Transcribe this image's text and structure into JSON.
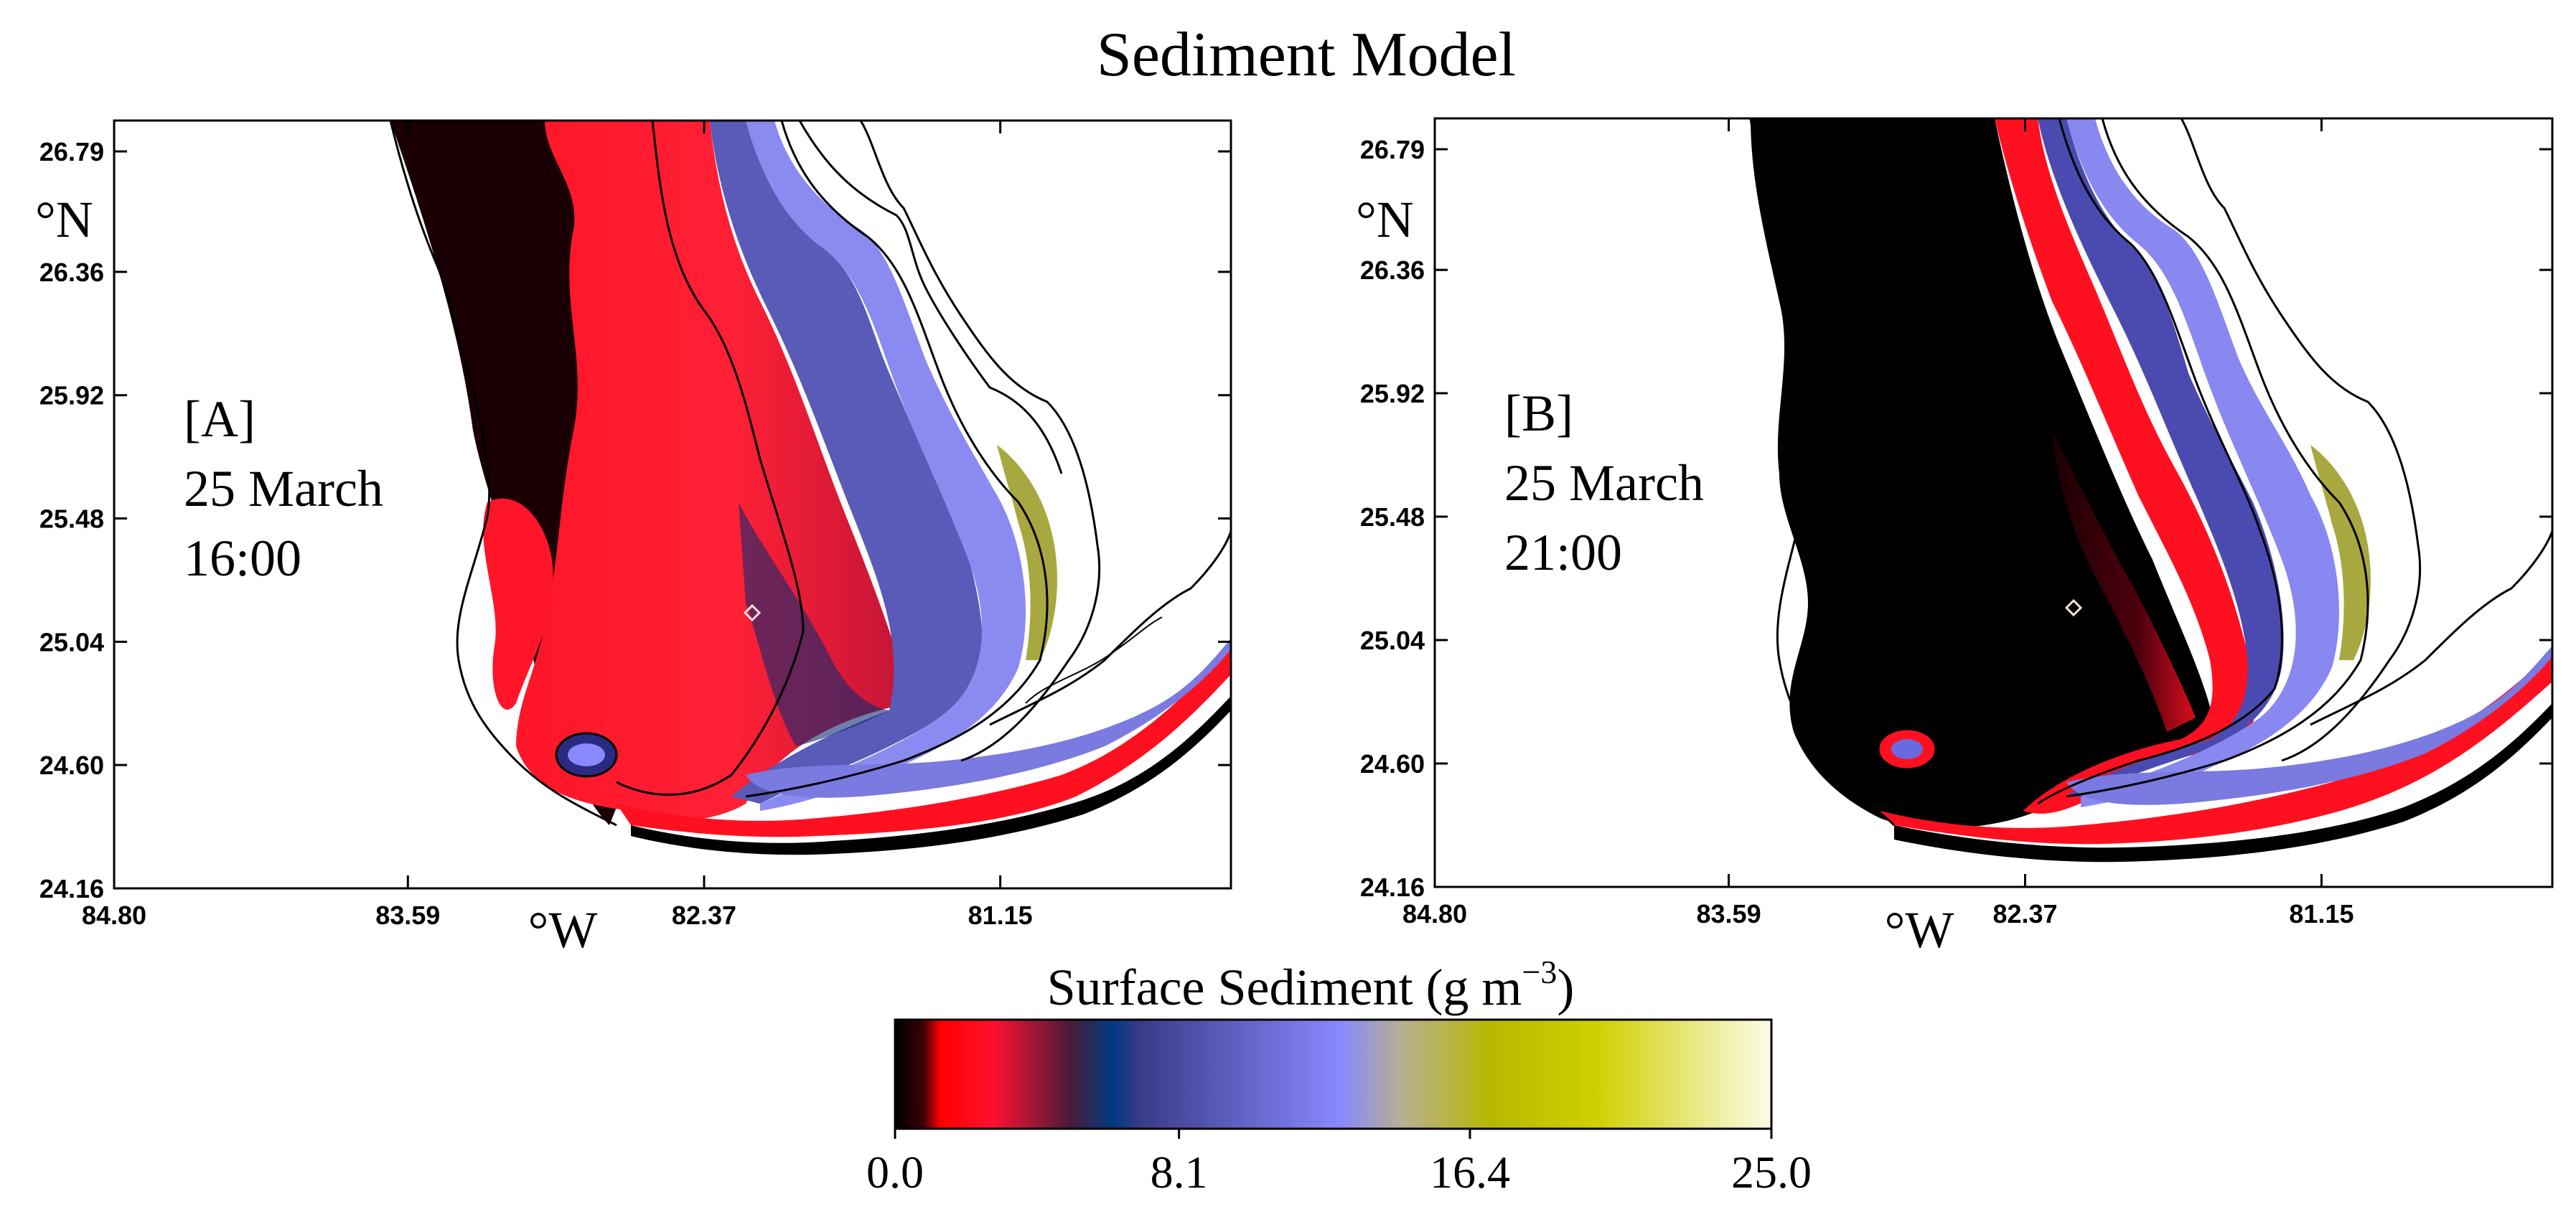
{
  "figure": {
    "title": "Sediment Model"
  },
  "chart_data": [
    {
      "type": "heatmap",
      "panel": "[A]",
      "date": "25 March",
      "time": "16:00",
      "variable": "Surface Sediment",
      "xlabel": "°W",
      "ylabel": "°N",
      "xlim": [
        84.8,
        80.2
      ],
      "ylim": [
        24.16,
        26.9
      ],
      "x_ticks": [
        "84.80",
        "83.59",
        "82.37",
        "81.15"
      ],
      "y_ticks": [
        "24.16",
        "24.60",
        "25.04",
        "25.48",
        "25.92",
        "26.36",
        "26.79"
      ],
      "station_marker": {
        "lon": 82.25,
        "lat": 25.15
      }
    },
    {
      "type": "heatmap",
      "panel": "[B]",
      "date": "25 March",
      "time": "21:00",
      "variable": "Surface Sediment",
      "xlabel": "°W",
      "ylabel": "°N",
      "xlim": [
        84.8,
        80.2
      ],
      "ylim": [
        24.16,
        26.9
      ],
      "x_ticks": [
        "84.80",
        "83.59",
        "82.37",
        "81.15"
      ],
      "y_ticks": [
        "24.16",
        "24.60",
        "25.04",
        "25.48",
        "25.92",
        "26.36",
        "26.79"
      ],
      "station_marker": {
        "lon": 82.25,
        "lat": 25.15
      }
    }
  ],
  "colorbar": {
    "title_main": "Surface Sediment (g m",
    "title_sup": "−3",
    "title_end": ")",
    "min": 0.0,
    "max": 25.0,
    "tick_labels": [
      "0.0",
      "8.1",
      "16.4",
      "25.0"
    ],
    "stops": [
      {
        "value": 0.0,
        "color": "#000000"
      },
      {
        "value": 0.8,
        "color": "#3a0008"
      },
      {
        "value": 1.3,
        "color": "#ff0000"
      },
      {
        "value": 2.8,
        "color": "#ff1030"
      },
      {
        "value": 5.0,
        "color": "#4a1a3a"
      },
      {
        "value": 6.2,
        "color": "#003a80"
      },
      {
        "value": 7.0,
        "color": "#3a3a8a"
      },
      {
        "value": 12.7,
        "color": "#8888ff"
      },
      {
        "value": 14.5,
        "color": "#b8b090"
      },
      {
        "value": 17.0,
        "color": "#b8b800"
      },
      {
        "value": 20.0,
        "color": "#d0d000"
      },
      {
        "value": 25.0,
        "color": "#fcfce8"
      }
    ]
  }
}
